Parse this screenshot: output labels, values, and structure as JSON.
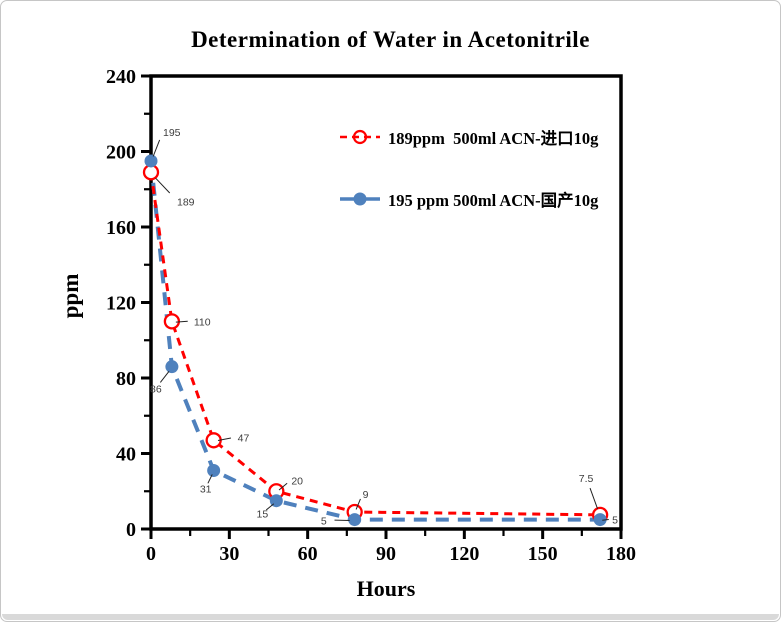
{
  "window": {
    "background": "#ffffff",
    "border_color": "#c6c6c6",
    "bottom_bar_color": "#d9d9d9"
  },
  "chart_data": {
    "type": "line",
    "title": "Determination of Water in Acetonitrile",
    "xlabel": "Hours",
    "ylabel": "ppm",
    "xlim": [
      0,
      180
    ],
    "ylim": [
      0,
      240
    ],
    "xticks": [
      0,
      30,
      60,
      90,
      120,
      150,
      180
    ],
    "xticks_minor": [
      15,
      45,
      75,
      105,
      135,
      165
    ],
    "yticks": [
      0,
      40,
      80,
      120,
      160,
      200,
      240
    ],
    "yticks_minor": [
      20,
      60,
      100,
      140,
      180,
      220
    ],
    "grid": false,
    "legend_position": "upper-right-inside",
    "axis_color": "#000000",
    "data_label_color": "#3d3d3d",
    "series": [
      {
        "name": "189ppm  500ml ACN-进口10g",
        "color": "#ff0000",
        "line_style": "dashed",
        "dash": [
          8,
          6
        ],
        "line_width": 3,
        "marker": "open-circle",
        "x": [
          0,
          8,
          24,
          48,
          78,
          172
        ],
        "y": [
          189,
          110,
          47,
          20,
          9,
          7.5
        ],
        "point_labels": [
          "189",
          "110",
          "47",
          "20",
          "9",
          "7.5"
        ],
        "label_offsets": [
          [
            26,
            33,
            "start"
          ],
          [
            22,
            4,
            "start"
          ],
          [
            24,
            1,
            "start"
          ],
          [
            15,
            -7,
            "start"
          ],
          [
            8,
            -14,
            "start"
          ],
          [
            -14,
            -33,
            "middle"
          ]
        ]
      },
      {
        "name": "195 ppm 500ml ACN-国产10g",
        "color": "#4f81bd",
        "line_style": "dashed",
        "dash": [
          13,
          9
        ],
        "line_width": 4,
        "marker": "filled-circle",
        "x": [
          0,
          8,
          24,
          48,
          78,
          172
        ],
        "y": [
          195,
          86,
          31,
          15,
          5,
          5
        ],
        "point_labels": [
          "195",
          "86",
          "31",
          "15",
          "5",
          "5"
        ],
        "label_offsets": [
          [
            12,
            -25,
            "start"
          ],
          [
            -16,
            26,
            "middle"
          ],
          [
            -8,
            22,
            "middle"
          ],
          [
            -14,
            17,
            "middle"
          ],
          [
            -28,
            5,
            "end"
          ],
          [
            12,
            4,
            "start"
          ]
        ]
      }
    ]
  }
}
